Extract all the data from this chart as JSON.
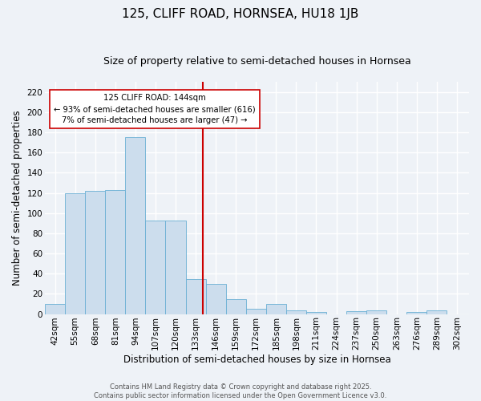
{
  "title": "125, CLIFF ROAD, HORNSEA, HU18 1JB",
  "subtitle": "Size of property relative to semi-detached houses in Hornsea",
  "xlabel": "Distribution of semi-detached houses by size in Hornsea",
  "ylabel": "Number of semi-detached properties",
  "bar_labels": [
    "42sqm",
    "55sqm",
    "68sqm",
    "81sqm",
    "94sqm",
    "107sqm",
    "120sqm",
    "133sqm",
    "146sqm",
    "159sqm",
    "172sqm",
    "185sqm",
    "198sqm",
    "211sqm",
    "224sqm",
    "237sqm",
    "250sqm",
    "263sqm",
    "276sqm",
    "289sqm",
    "302sqm"
  ],
  "heights": [
    10,
    120,
    122,
    123,
    175,
    93,
    93,
    35,
    30,
    15,
    5,
    10,
    4,
    2,
    0,
    3,
    4,
    0,
    2,
    4,
    0
  ],
  "bin_starts": [
    42,
    55,
    68,
    81,
    94,
    107,
    120,
    133,
    146,
    159,
    172,
    185,
    198,
    211,
    224,
    237,
    250,
    263,
    276,
    289,
    302
  ],
  "bin_width": 13,
  "bar_color": "#ccdded",
  "bar_edge_color": "#6aafd4",
  "vline_x": 144,
  "vline_color": "#cc0000",
  "annotation_text": "125 CLIFF ROAD: 144sqm\n← 93% of semi-detached houses are smaller (616)\n7% of semi-detached houses are larger (47) →",
  "annotation_box_facecolor": "#ffffff",
  "annotation_box_edgecolor": "#cc0000",
  "ylim": [
    0,
    230
  ],
  "yticks": [
    0,
    20,
    40,
    60,
    80,
    100,
    120,
    140,
    160,
    180,
    200,
    220
  ],
  "footer": "Contains HM Land Registry data © Crown copyright and database right 2025.\nContains public sector information licensed under the Open Government Licence v3.0.",
  "background_color": "#eef2f7",
  "grid_color": "#ffffff",
  "title_fontsize": 11,
  "subtitle_fontsize": 9,
  "axis_label_fontsize": 8.5,
  "tick_fontsize": 7.5,
  "footer_fontsize": 6,
  "footer_color": "#555555"
}
